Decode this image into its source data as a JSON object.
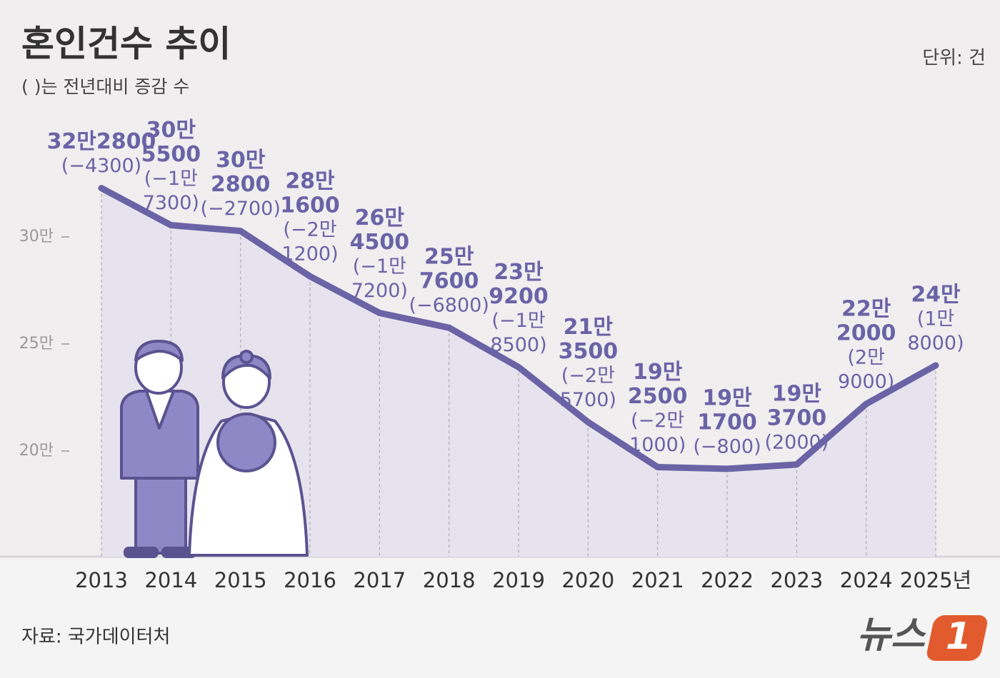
{
  "chart_data": {
    "type": "line",
    "title": "혼인건수 추이",
    "subtitle": "( )는 전년대비 증감 수",
    "unit": "단위: 건",
    "source": "자료: 국가데이터처",
    "logo": {
      "text": "뉴스",
      "mark": "1"
    },
    "categories": [
      "2013",
      "2014",
      "2015",
      "2016",
      "2017",
      "2018",
      "2019",
      "2020",
      "2021",
      "2022",
      "2023",
      "2024",
      "2025년"
    ],
    "series": [
      {
        "name": "혼인건수",
        "color": "#6a63a6",
        "values": [
          322800,
          305500,
          302800,
          281600,
          264500,
          257600,
          239200,
          213500,
          192500,
          191700,
          193700,
          222000,
          240000
        ],
        "value_labels": [
          [
            "32만2800"
          ],
          [
            "30만",
            "5500"
          ],
          [
            "30만",
            "2800"
          ],
          [
            "28만",
            "1600"
          ],
          [
            "26만",
            "4500"
          ],
          [
            "25만",
            "7600"
          ],
          [
            "23만",
            "9200"
          ],
          [
            "21만",
            "3500"
          ],
          [
            "19만",
            "2500"
          ],
          [
            "19만",
            "1700"
          ],
          [
            "19만",
            "3700"
          ],
          [
            "22만",
            "2000"
          ],
          [
            "24만"
          ]
        ],
        "change_labels": [
          [
            "(−4300)"
          ],
          [
            "(−1만",
            "7300)"
          ],
          [
            "(−2700)"
          ],
          [
            "(−2만",
            "1200)"
          ],
          [
            "(−1만",
            "7200)"
          ],
          [
            "(−6800)"
          ],
          [
            "(−1만",
            "8500)"
          ],
          [
            "(−2만",
            "5700)"
          ],
          [
            "(−2만",
            "1000)"
          ],
          [
            "(−800)"
          ],
          [
            "(2000)"
          ],
          [
            "(2만",
            "9000)"
          ],
          [
            "(1만",
            "8000)"
          ]
        ]
      }
    ],
    "ylim": [
      150000,
      330000
    ],
    "yticks": [
      {
        "value": 200000,
        "label": "20만"
      },
      {
        "value": 250000,
        "label": "25만"
      },
      {
        "value": 300000,
        "label": "30만"
      }
    ]
  }
}
